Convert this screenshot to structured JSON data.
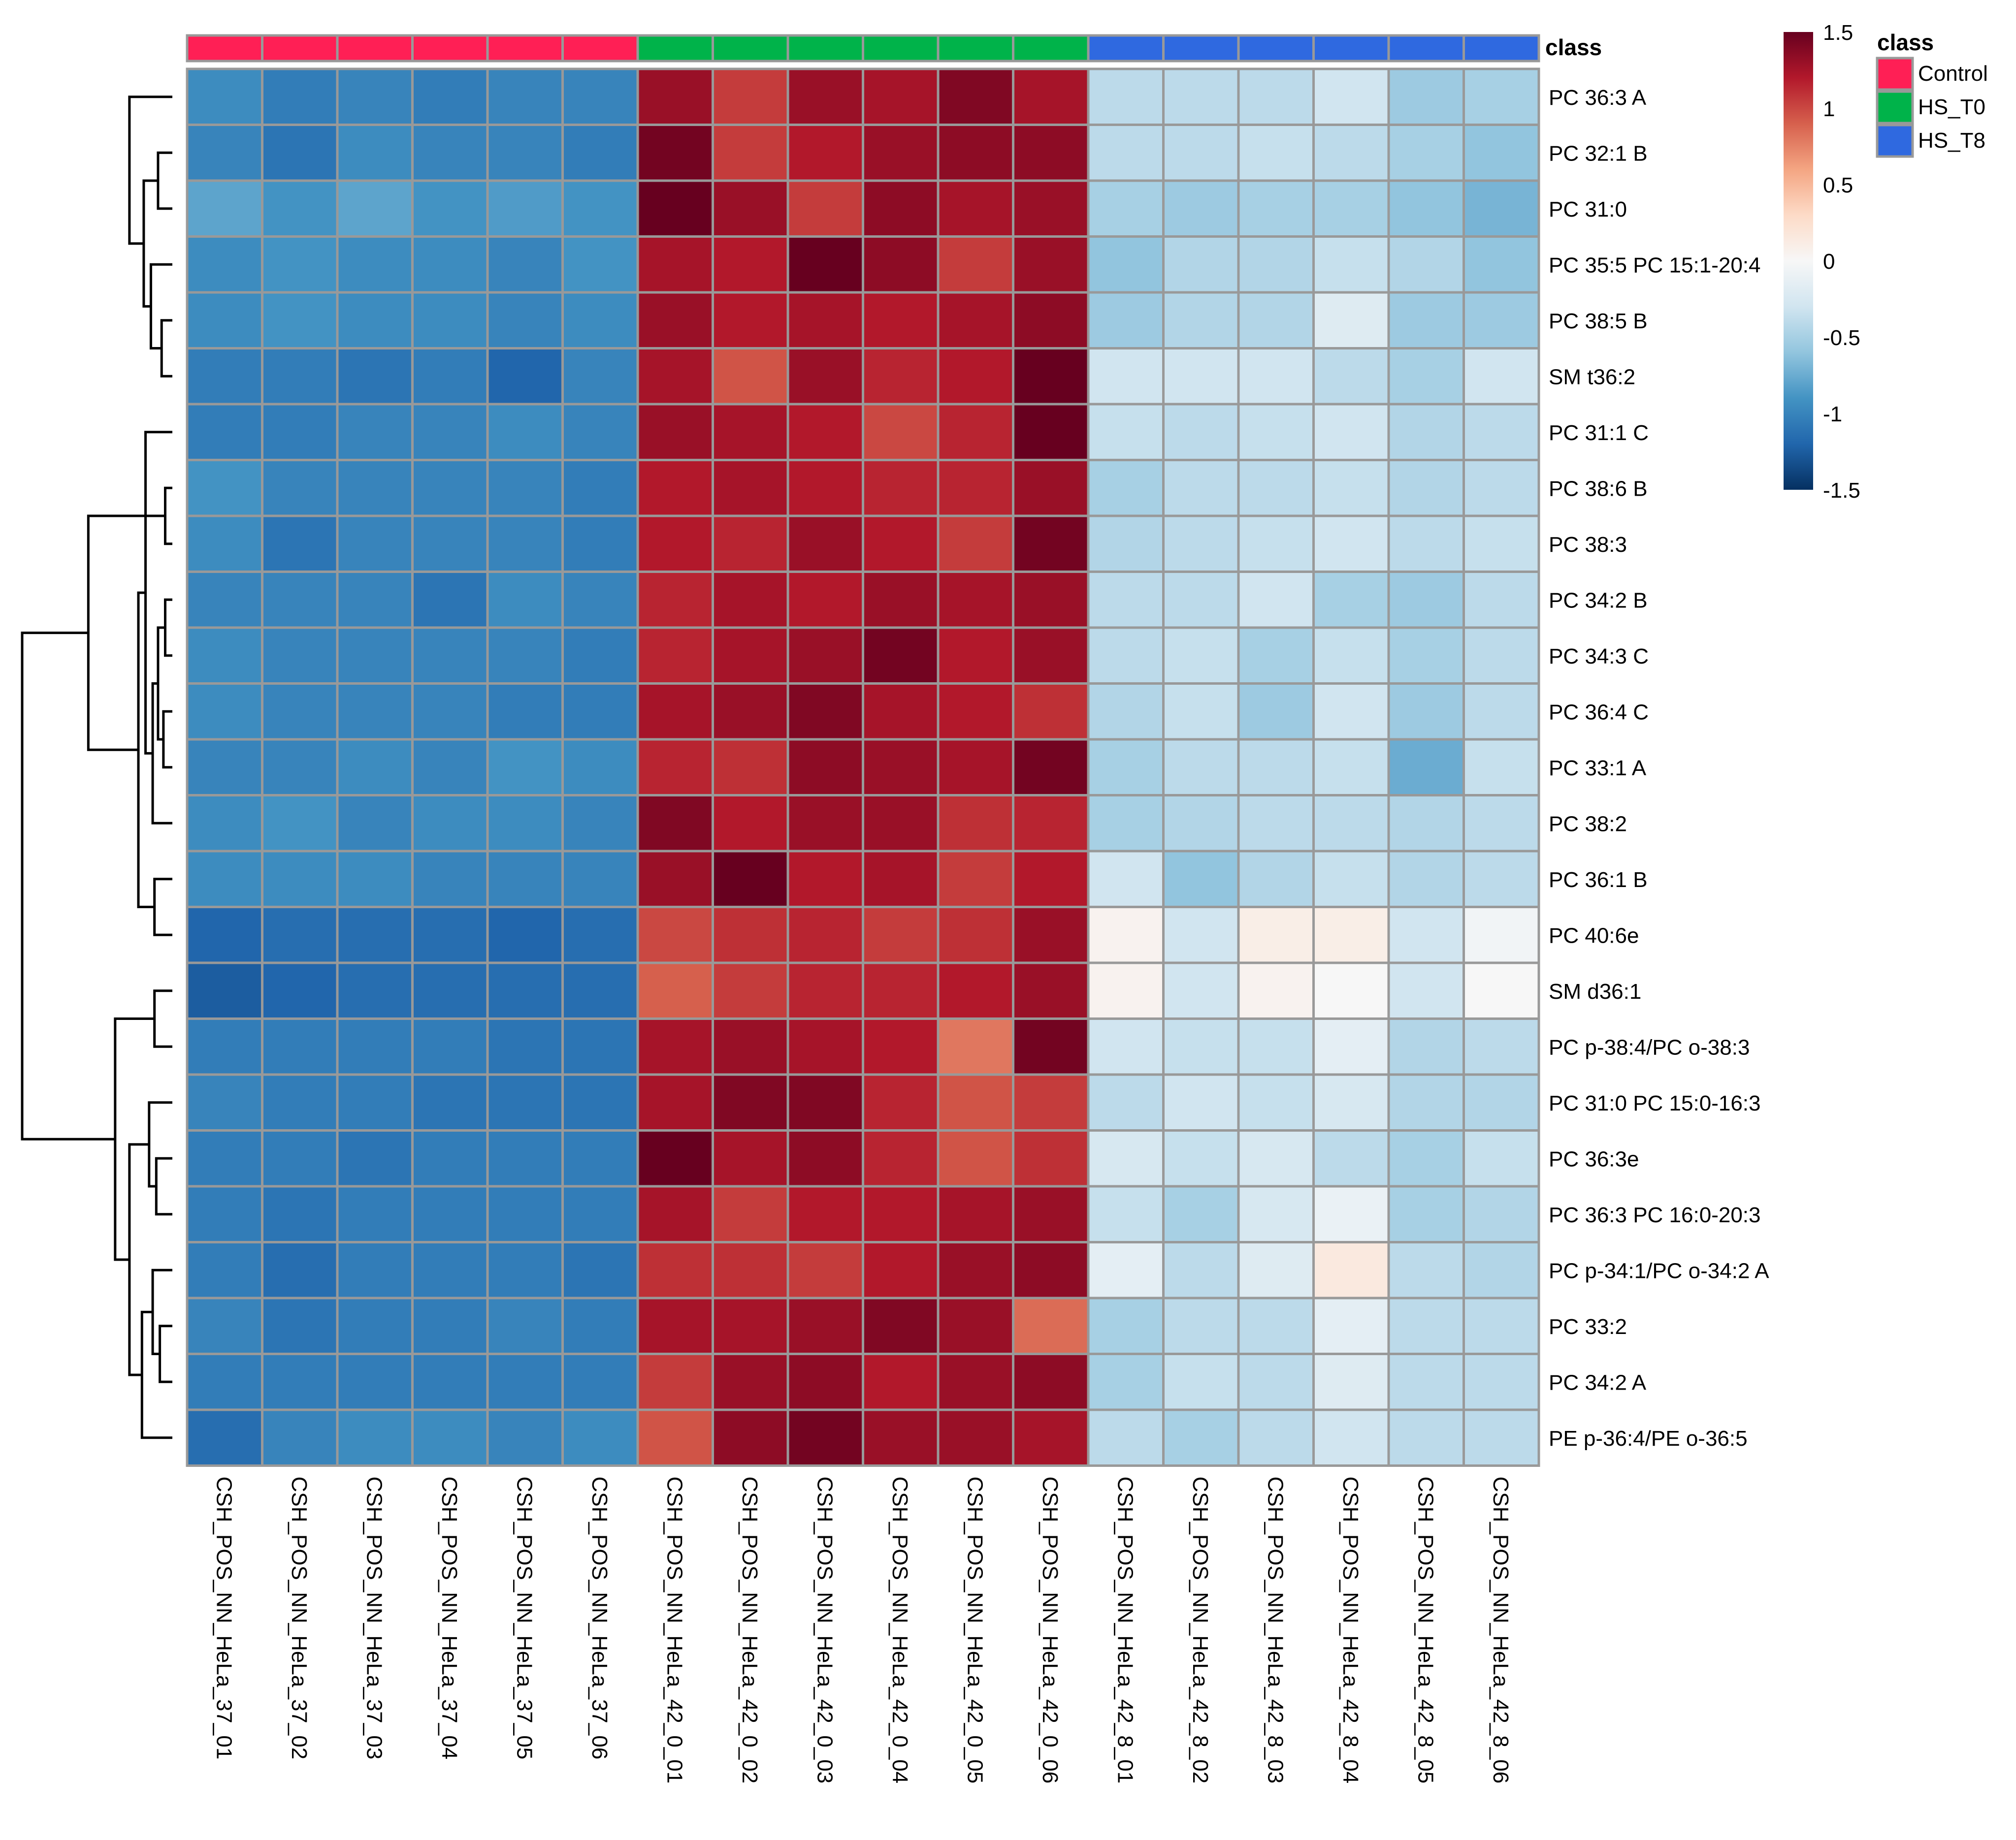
{
  "chart_data": {
    "type": "heatmap",
    "title": "",
    "xlabel": "",
    "ylabel": "",
    "columns": [
      "CSH_POS_NN_HeLa_37_01",
      "CSH_POS_NN_HeLa_37_02",
      "CSH_POS_NN_HeLa_37_03",
      "CSH_POS_NN_HeLa_37_04",
      "CSH_POS_NN_HeLa_37_05",
      "CSH_POS_NN_HeLa_37_06",
      "CSH_POS_NN_HeLa_42_0_01",
      "CSH_POS_NN_HeLa_42_0_02",
      "CSH_POS_NN_HeLa_42_0_03",
      "CSH_POS_NN_HeLa_42_0_04",
      "CSH_POS_NN_HeLa_42_0_05",
      "CSH_POS_NN_HeLa_42_0_06",
      "CSH_POS_NN_HeLa_42_8_01",
      "CSH_POS_NN_HeLa_42_8_02",
      "CSH_POS_NN_HeLa_42_8_03",
      "CSH_POS_NN_HeLa_42_8_04",
      "CSH_POS_NN_HeLa_42_8_05",
      "CSH_POS_NN_HeLa_42_8_06"
    ],
    "column_classes": [
      "Control",
      "Control",
      "Control",
      "Control",
      "Control",
      "Control",
      "HS_T0",
      "HS_T0",
      "HS_T0",
      "HS_T0",
      "HS_T0",
      "HS_T0",
      "HS_T8",
      "HS_T8",
      "HS_T8",
      "HS_T8",
      "HS_T8",
      "HS_T8"
    ],
    "class_annotation_label": "class",
    "rows": [
      "PC 36:3 A",
      "PC 32:1  B",
      "PC 31:0",
      "PC 35:5 PC 15:1-20:4",
      "PC 38:5 B",
      "SM t36:2",
      "PC 31:1  C",
      "PC 38:6 B",
      "PC 38:3",
      "PC 34:2  B",
      "PC 34:3 C",
      "PC 36:4 C",
      "PC 33:1  A",
      "PC 38:2",
      "PC 36:1  B",
      "PC 40:6e",
      "SM d36:1",
      "PC p-38:4/PC o-38:3",
      "PC 31:0 PC 15:0-16:3",
      "PC 36:3e",
      "PC 36:3 PC 16:0-20:3",
      "PC p-34:1/PC o-34:2 A",
      "PC 33:2",
      "PC 34:2  A",
      "PE p-36:4/PE o-36:5"
    ],
    "values": [
      [
        -0.95,
        -1.05,
        -1.0,
        -1.05,
        -1.0,
        -1.0,
        1.3,
        1.05,
        1.3,
        1.25,
        1.4,
        1.25,
        -0.4,
        -0.4,
        -0.4,
        -0.3,
        -0.55,
        -0.5
      ],
      [
        -1.0,
        -1.1,
        -0.95,
        -1.0,
        -1.0,
        -1.05,
        1.45,
        1.05,
        1.2,
        1.3,
        1.35,
        1.35,
        -0.4,
        -0.4,
        -0.35,
        -0.4,
        -0.5,
        -0.6
      ],
      [
        -0.8,
        -0.9,
        -0.8,
        -0.9,
        -0.85,
        -0.9,
        1.55,
        1.3,
        1.05,
        1.35,
        1.25,
        1.3,
        -0.5,
        -0.55,
        -0.5,
        -0.5,
        -0.6,
        -0.7
      ],
      [
        -0.95,
        -0.9,
        -0.95,
        -0.95,
        -1.0,
        -0.9,
        1.25,
        1.2,
        1.5,
        1.35,
        1.05,
        1.3,
        -0.6,
        -0.45,
        -0.45,
        -0.35,
        -0.45,
        -0.6
      ],
      [
        -0.95,
        -0.9,
        -0.95,
        -0.95,
        -1.0,
        -0.95,
        1.3,
        1.2,
        1.25,
        1.2,
        1.25,
        1.35,
        -0.55,
        -0.45,
        -0.45,
        -0.2,
        -0.55,
        -0.55
      ],
      [
        -1.05,
        -1.05,
        -1.1,
        -1.05,
        -1.2,
        -1.0,
        1.25,
        0.95,
        1.3,
        1.15,
        1.2,
        1.5,
        -0.3,
        -0.3,
        -0.3,
        -0.4,
        -0.5,
        -0.3
      ],
      [
        -1.05,
        -1.05,
        -1.0,
        -1.0,
        -0.95,
        -1.0,
        1.3,
        1.25,
        1.2,
        1.0,
        1.15,
        1.5,
        -0.35,
        -0.4,
        -0.35,
        -0.3,
        -0.45,
        -0.4
      ],
      [
        -0.9,
        -1.0,
        -1.0,
        -1.0,
        -1.0,
        -1.05,
        1.2,
        1.25,
        1.2,
        1.15,
        1.15,
        1.3,
        -0.5,
        -0.4,
        -0.4,
        -0.35,
        -0.45,
        -0.4
      ],
      [
        -0.95,
        -1.1,
        -1.0,
        -1.0,
        -1.0,
        -1.05,
        1.2,
        1.15,
        1.3,
        1.2,
        1.05,
        1.45,
        -0.45,
        -0.4,
        -0.35,
        -0.3,
        -0.4,
        -0.35
      ],
      [
        -1.0,
        -1.0,
        -1.0,
        -1.1,
        -0.95,
        -1.0,
        1.15,
        1.25,
        1.2,
        1.3,
        1.25,
        1.3,
        -0.4,
        -0.4,
        -0.3,
        -0.5,
        -0.55,
        -0.4
      ],
      [
        -0.95,
        -1.0,
        -1.0,
        -1.0,
        -1.0,
        -1.05,
        1.15,
        1.25,
        1.3,
        1.45,
        1.2,
        1.3,
        -0.4,
        -0.35,
        -0.5,
        -0.35,
        -0.5,
        -0.4
      ],
      [
        -0.95,
        -1.0,
        -1.0,
        -1.0,
        -1.05,
        -1.05,
        1.25,
        1.3,
        1.4,
        1.25,
        1.2,
        1.1,
        -0.45,
        -0.35,
        -0.55,
        -0.3,
        -0.55,
        -0.4
      ],
      [
        -1.0,
        -1.0,
        -0.95,
        -1.0,
        -0.9,
        -0.95,
        1.15,
        1.1,
        1.35,
        1.3,
        1.25,
        1.45,
        -0.5,
        -0.4,
        -0.4,
        -0.35,
        -0.75,
        -0.35
      ],
      [
        -0.95,
        -0.9,
        -1.0,
        -0.95,
        -0.95,
        -1.0,
        1.4,
        1.2,
        1.3,
        1.3,
        1.1,
        1.15,
        -0.5,
        -0.45,
        -0.4,
        -0.4,
        -0.45,
        -0.4
      ],
      [
        -0.95,
        -0.95,
        -0.95,
        -1.0,
        -1.0,
        -1.0,
        1.3,
        1.55,
        1.2,
        1.25,
        1.05,
        1.2,
        -0.3,
        -0.6,
        -0.45,
        -0.35,
        -0.45,
        -0.4
      ],
      [
        -1.2,
        -1.15,
        -1.15,
        -1.15,
        -1.2,
        -1.15,
        1.0,
        1.1,
        1.15,
        1.05,
        1.1,
        1.3,
        0.05,
        -0.3,
        0.1,
        0.1,
        -0.3,
        -0.05
      ],
      [
        -1.25,
        -1.2,
        -1.15,
        -1.15,
        -1.15,
        -1.15,
        0.9,
        1.05,
        1.15,
        1.15,
        1.2,
        1.3,
        0.05,
        -0.3,
        0.05,
        0.0,
        -0.3,
        0.0
      ],
      [
        -1.05,
        -1.05,
        -1.05,
        -1.05,
        -1.1,
        -1.1,
        1.25,
        1.3,
        1.25,
        1.2,
        0.8,
        1.45,
        -0.3,
        -0.35,
        -0.35,
        -0.15,
        -0.45,
        -0.4
      ],
      [
        -1.0,
        -1.05,
        -1.05,
        -1.1,
        -1.1,
        -1.1,
        1.25,
        1.4,
        1.4,
        1.15,
        0.95,
        1.05,
        -0.4,
        -0.3,
        -0.35,
        -0.25,
        -0.45,
        -0.45
      ],
      [
        -1.05,
        -1.05,
        -1.1,
        -1.05,
        -1.05,
        -1.05,
        1.55,
        1.25,
        1.35,
        1.15,
        0.95,
        1.1,
        -0.25,
        -0.35,
        -0.25,
        -0.4,
        -0.5,
        -0.35
      ],
      [
        -1.05,
        -1.1,
        -1.05,
        -1.05,
        -1.05,
        -1.05,
        1.25,
        1.05,
        1.2,
        1.2,
        1.25,
        1.3,
        -0.35,
        -0.5,
        -0.25,
        -0.1,
        -0.5,
        -0.45
      ],
      [
        -1.05,
        -1.15,
        -1.05,
        -1.05,
        -1.05,
        -1.1,
        1.1,
        1.1,
        1.05,
        1.2,
        1.3,
        1.35,
        -0.15,
        -0.4,
        -0.2,
        0.15,
        -0.4,
        -0.45
      ],
      [
        -1.0,
        -1.1,
        -1.05,
        -1.05,
        -1.0,
        -1.05,
        1.25,
        1.25,
        1.3,
        1.4,
        1.3,
        0.85,
        -0.5,
        -0.4,
        -0.4,
        -0.15,
        -0.4,
        -0.4
      ],
      [
        -1.05,
        -1.05,
        -1.05,
        -1.05,
        -1.05,
        -1.05,
        1.05,
        1.3,
        1.35,
        1.2,
        1.3,
        1.35,
        -0.5,
        -0.35,
        -0.4,
        -0.2,
        -0.4,
        -0.4
      ],
      [
        -1.15,
        -1.0,
        -0.95,
        -0.95,
        -1.0,
        -0.95,
        0.95,
        1.35,
        1.45,
        1.3,
        1.3,
        1.25,
        -0.4,
        -0.5,
        -0.4,
        -0.3,
        -0.4,
        -0.4
      ]
    ],
    "color_scale": {
      "min": -1.5,
      "max": 1.5,
      "ticks": [
        "1.5",
        "1",
        "0.5",
        "0",
        "-0.5",
        "-1",
        "-1.5"
      ],
      "tick_values": [
        1.5,
        1,
        0.5,
        0,
        -0.5,
        -1,
        -1.5
      ],
      "stops": [
        "#053061",
        "#2166ac",
        "#4393c3",
        "#92c5de",
        "#d1e5f0",
        "#f7f7f7",
        "#fddbc7",
        "#f4a582",
        "#d6604d",
        "#b2182b",
        "#67001f"
      ]
    },
    "legend": {
      "title": "class",
      "items": [
        {
          "label": "Control",
          "color": "#ff1f55"
        },
        {
          "label": "HS_T0",
          "color": "#00b34a"
        },
        {
          "label": "HS_T8",
          "color": "#2f69e0"
        }
      ]
    },
    "row_dendrogram": {
      "merges": [
        [
          1,
          2,
          0.4
        ],
        [
          4,
          5,
          0.3
        ],
        [
          -2,
          3,
          0.6
        ],
        [
          -3,
          -1,
          0.8
        ],
        [
          -4,
          0,
          1.2
        ],
        [
          7,
          8,
          0.2
        ],
        [
          9,
          10,
          0.2
        ],
        [
          11,
          12,
          0.25
        ],
        [
          -8,
          -7,
          0.4
        ],
        [
          -9,
          13,
          0.55
        ],
        [
          -10,
          6,
          0.75
        ],
        [
          14,
          15,
          0.5
        ],
        [
          -12,
          -11,
          0.95
        ],
        [
          -13,
          -6,
          2.35
        ],
        [
          16,
          17,
          0.5
        ],
        [
          19,
          20,
          0.45
        ],
        [
          18,
          -16,
          0.65
        ],
        [
          22,
          23,
          0.35
        ],
        [
          21,
          -18,
          0.55
        ],
        [
          -19,
          24,
          0.85
        ],
        [
          -17,
          -20,
          1.2
        ],
        [
          -21,
          -15,
          1.6
        ],
        [
          -22,
          -14,
          4.2
        ]
      ],
      "max_height": 4.2
    },
    "grid": false
  }
}
